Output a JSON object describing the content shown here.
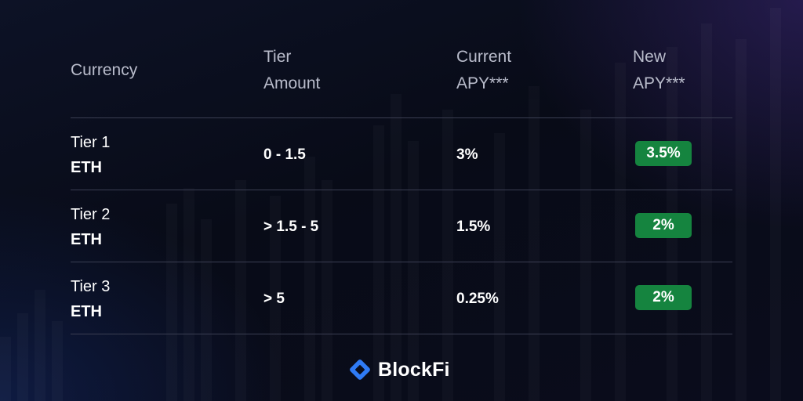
{
  "colors": {
    "badge_green": "#15843f",
    "brand_blue": "#2f7bf5",
    "header_text": "#b9bccb",
    "divider": "#3a3e52"
  },
  "table": {
    "headers": {
      "currency": "Currency",
      "tier_amount": "Tier\nAmount",
      "current_apy": "Current\nAPY***",
      "new_apy": "New\nAPY***"
    },
    "rows": [
      {
        "tier": "Tier 1",
        "currency": "ETH",
        "amount": "0 - 1.5",
        "current_apy": "3%",
        "new_apy": "3.5%"
      },
      {
        "tier": "Tier 2",
        "currency": "ETH",
        "amount": "> 1.5 - 5",
        "current_apy": "1.5%",
        "new_apy": "2%"
      },
      {
        "tier": "Tier 3",
        "currency": "ETH",
        "amount": "> 5",
        "current_apy": "0.25%",
        "new_apy": "2%"
      }
    ]
  },
  "brand": {
    "logo_icon": "blockfi-diamond-logo-icon",
    "name": "BlockFi"
  }
}
